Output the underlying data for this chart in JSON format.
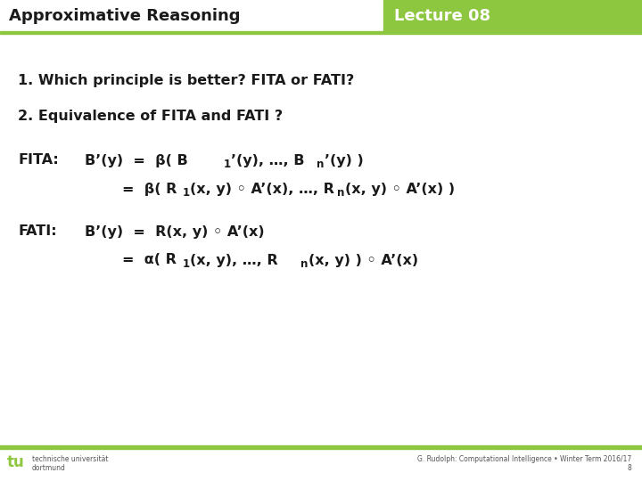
{
  "title_left": "Approximative Reasoning",
  "title_right": "Lecture 08",
  "header_green_color": "#8dc63f",
  "body_bg_color": "#ffffff",
  "text_color": "#1a1a1a",
  "footer_text_left1": "technische universität",
  "footer_text_left2": "dortmund",
  "footer_text_right": "G. Rudolph: Computational Intelligence • Winter Term 2016/17",
  "footer_page": "8",
  "line1": "1. Which principle is better? FITA or FATI?",
  "line2": "2. Equivalence of FITA and FATI ?",
  "fita_label": "FITA:",
  "fati_label": "FATI:"
}
